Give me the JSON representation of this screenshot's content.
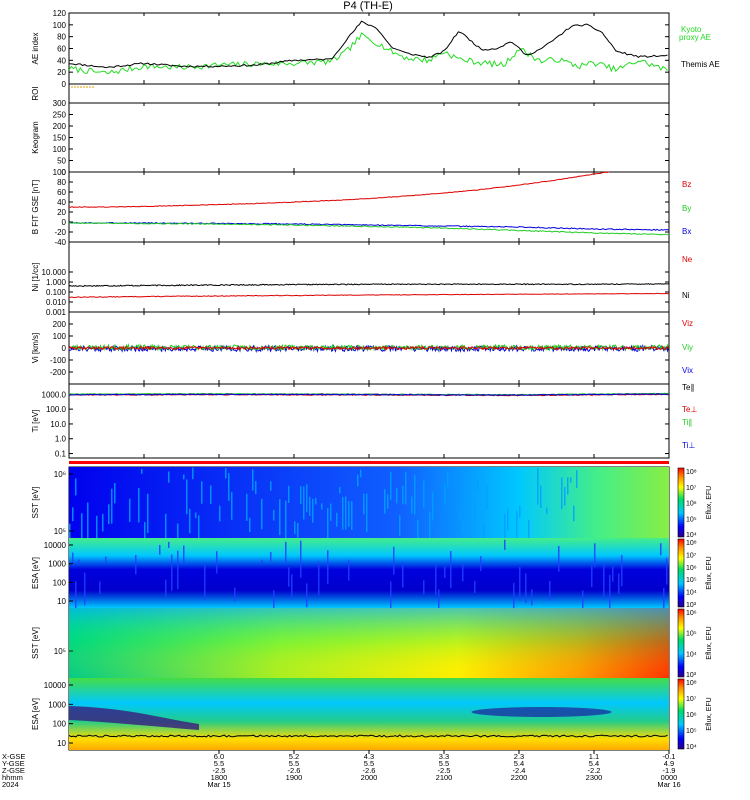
{
  "title": "P4 (TH-E)",
  "colors": {
    "kyoto": "#22dd22",
    "themis": "#000000",
    "bz": "#dd0000",
    "by": "#22cc22",
    "bx": "#0000dd",
    "ne": "#dd0000",
    "ni": "#000000",
    "te_par": "#000000",
    "te_perp": "#dd0000",
    "ti_par": "#22cc22",
    "ti_perp": "#0000dd",
    "bar_red": "#ff0000"
  },
  "chart_data": [
    {
      "type": "line",
      "panel": "ae",
      "ylabel": "AE index",
      "ylim": [
        0,
        120
      ],
      "ticks": [
        "0",
        "20",
        "40",
        "60",
        "80",
        "100",
        "120"
      ],
      "x_range_hours": [
        16,
        24
      ],
      "series": [
        {
          "name": "Kyoto proxy AE",
          "color_key": "kyoto",
          "x": [
            16.0,
            16.5,
            17.0,
            17.5,
            18.0,
            18.5,
            19.0,
            19.5,
            19.7,
            19.9,
            20.1,
            20.3,
            20.5,
            20.8,
            21.0,
            21.2,
            21.5,
            21.8,
            22.0,
            22.3,
            22.5,
            22.8,
            23.0,
            23.3,
            23.6,
            24.0
          ],
          "y": [
            26,
            18,
            30,
            28,
            32,
            34,
            35,
            38,
            55,
            82,
            70,
            55,
            44,
            40,
            55,
            42,
            36,
            32,
            60,
            38,
            42,
            30,
            36,
            24,
            40,
            22
          ]
        },
        {
          "name": "Themis AE",
          "color_key": "themis",
          "x": [
            16.0,
            16.5,
            17.0,
            17.5,
            18.0,
            18.5,
            19.0,
            19.5,
            19.7,
            19.9,
            20.1,
            20.3,
            20.5,
            20.8,
            21.0,
            21.2,
            21.5,
            21.7,
            21.9,
            22.1,
            22.3,
            22.5,
            22.7,
            22.9,
            23.1,
            23.3,
            23.6,
            24.0
          ],
          "y": [
            35,
            28,
            35,
            30,
            30,
            32,
            40,
            42,
            75,
            105,
            95,
            62,
            52,
            45,
            55,
            90,
            58,
            60,
            72,
            48,
            60,
            78,
            98,
            100,
            88,
            55,
            46,
            48
          ]
        }
      ]
    },
    {
      "type": "bar",
      "panel": "roi",
      "ylabel": "ROI",
      "note_marks": "short yellow tick near start"
    },
    {
      "type": "line",
      "panel": "keogram",
      "ylabel": "Keogram",
      "ylim": [
        0,
        300
      ],
      "ticks": [
        "0",
        "50",
        "100",
        "150",
        "200",
        "250",
        "300"
      ],
      "series": []
    },
    {
      "type": "line",
      "panel": "bfield",
      "ylabel": "B FIT GSE [nT]",
      "ylim": [
        -40,
        100
      ],
      "ticks": [
        "-40",
        "-20",
        "0",
        "20",
        "40",
        "60",
        "80",
        "100"
      ],
      "series": [
        {
          "name": "Bz",
          "color_key": "bz",
          "x": [
            16.0,
            16.5,
            17.0,
            17.5,
            18.0,
            18.5,
            19.0,
            19.5,
            20.0,
            20.5,
            21.0,
            21.5,
            22.0,
            22.5,
            23.0,
            23.2
          ],
          "y": [
            30,
            30,
            31,
            33,
            35,
            37,
            40,
            43,
            47,
            52,
            58,
            65,
            74,
            84,
            96,
            100
          ]
        },
        {
          "name": "By",
          "color_key": "by",
          "x": [
            16.0,
            17.0,
            18.0,
            19.0,
            20.0,
            21.0,
            22.0,
            23.0,
            24.0
          ],
          "y": [
            -2,
            -3,
            -4,
            -6,
            -9,
            -12,
            -17,
            -22,
            -25
          ]
        },
        {
          "name": "Bx",
          "color_key": "bx",
          "x": [
            16.0,
            17.0,
            18.0,
            19.0,
            20.0,
            21.0,
            22.0,
            23.0,
            24.0
          ],
          "y": [
            -2,
            -2,
            -3,
            -4,
            -6,
            -8,
            -10,
            -14,
            -16
          ]
        }
      ]
    },
    {
      "type": "line",
      "panel": "density",
      "ylabel": "Ni [1/cc]",
      "scale": "log",
      "ylim": [
        0.001,
        10000
      ],
      "ticks": [
        "0.001",
        "0.010",
        "0.100",
        "1.000",
        "10.000"
      ],
      "series": [
        {
          "name": "Ne",
          "color_key": "ne",
          "x": [
            16.0,
            17.0,
            18.0,
            19.0,
            20.0,
            21.0,
            22.0,
            23.0,
            24.0
          ],
          "y": [
            0.03,
            0.035,
            0.04,
            0.045,
            0.05,
            0.055,
            0.06,
            0.065,
            0.07
          ]
        },
        {
          "name": "Ni",
          "color_key": "ni",
          "x": [
            16.0,
            17.0,
            18.0,
            19.0,
            20.0,
            21.0,
            22.0,
            23.0,
            24.0
          ],
          "y": [
            0.4,
            0.45,
            0.5,
            0.55,
            0.6,
            0.6,
            0.6,
            0.6,
            0.65
          ]
        }
      ]
    },
    {
      "type": "line",
      "panel": "velocity",
      "ylabel": "Vi [km/s]",
      "ylim": [
        -300,
        300
      ],
      "ticks": [
        "-200",
        "-100",
        "0",
        "100",
        "200"
      ],
      "series": [
        {
          "name": "Viz",
          "color_key": "bz",
          "x": [
            16,
            24
          ],
          "y": [
            0,
            0
          ]
        },
        {
          "name": "Viy",
          "color_key": "by",
          "x": [
            16,
            24
          ],
          "y": [
            5,
            5
          ]
        },
        {
          "name": "Vix",
          "color_key": "bx",
          "x": [
            16,
            24
          ],
          "y": [
            -5,
            -5
          ]
        }
      ]
    },
    {
      "type": "line",
      "panel": "temperature",
      "ylabel": "Ti [eV]",
      "scale": "log",
      "ylim": [
        0.05,
        5000
      ],
      "ticks": [
        "0.1",
        "1.0",
        "10.0",
        "100.0",
        "1000.0"
      ],
      "series": [
        {
          "name": "Te∥",
          "color_key": "te_par",
          "x": [
            16,
            18,
            20,
            22,
            24
          ],
          "y": [
            1000,
            1050,
            1000,
            900,
            1100
          ]
        },
        {
          "name": "Te⊥",
          "color_key": "te_perp",
          "x": [
            16,
            18,
            20,
            22,
            24
          ],
          "y": [
            900,
            950,
            900,
            850,
            1000
          ]
        },
        {
          "name": "Ti∥",
          "color_key": "ti_par",
          "x": [
            16,
            18,
            20,
            22,
            24
          ],
          "y": [
            1050,
            1100,
            1000,
            950,
            1150
          ]
        },
        {
          "name": "Ti⊥",
          "color_key": "ti_perp",
          "x": [
            16,
            18,
            20,
            22,
            24
          ],
          "y": [
            950,
            1000,
            950,
            900,
            1050
          ]
        }
      ]
    },
    {
      "type": "heatmap",
      "panel": "sst_e",
      "ylabel": "SST [eV]",
      "ticks": [
        "10⁵",
        "10⁶"
      ],
      "colorbar_label": "Eflux, EFU",
      "colorbar_ticks": [
        "10⁴",
        "10⁵",
        "10⁶",
        "10⁷",
        "10⁸"
      ]
    },
    {
      "type": "heatmap",
      "panel": "esa_e",
      "ylabel": "ESA [eV]",
      "ticks": [
        "10",
        "100",
        "1000",
        "10000"
      ],
      "colorbar_label": "Eflux, EFU",
      "colorbar_ticks": [
        "10³",
        "10⁴",
        "10⁵",
        "10⁶",
        "10⁷",
        "10⁸"
      ]
    },
    {
      "type": "heatmap",
      "panel": "sst_i",
      "ylabel": "SST [eV]",
      "ticks": [
        "10⁵"
      ],
      "colorbar_label": "Eflux, EFU",
      "colorbar_ticks": [
        "10³",
        "10⁴",
        "10⁵",
        "10⁶"
      ]
    },
    {
      "type": "heatmap",
      "panel": "esa_i",
      "ylabel": "ESA [eV]",
      "ticks": [
        "10",
        "100",
        "1000",
        "10000"
      ],
      "colorbar_label": "Eflux, EFU",
      "colorbar_ticks": [
        "10⁴",
        "10⁵",
        "10⁶",
        "10⁷",
        "10⁸"
      ]
    }
  ],
  "legend": {
    "ae": [
      "Kyoto",
      "proxy AE",
      "Themis AE"
    ],
    "bfield": [
      "Bz",
      "By",
      "Bx"
    ],
    "density": [
      "Ne",
      "Ni"
    ],
    "velocity": [
      "Viz",
      "Viy",
      "Vix"
    ],
    "temperature": [
      "Te∥",
      "Te⊥",
      "Ti∥",
      "Ti⊥"
    ]
  },
  "x_axis": {
    "row_labels": [
      "X-GSE",
      "Y-GSE",
      "Z-GSE",
      "hhmm",
      "2024"
    ],
    "columns": [
      {
        "values": [
          "6.0",
          "5.5",
          "-2.5",
          "1800",
          "Mar 15"
        ]
      },
      {
        "values": [
          "5.2",
          "5.5",
          "-2.6",
          "1900",
          ""
        ]
      },
      {
        "values": [
          "4.3",
          "5.5",
          "-2.6",
          "2000",
          ""
        ]
      },
      {
        "values": [
          "3.3",
          "5.5",
          "-2.5",
          "2100",
          ""
        ]
      },
      {
        "values": [
          "2.3",
          "5.4",
          "-2.4",
          "2200",
          ""
        ]
      },
      {
        "values": [
          "1.1",
          "5.4",
          "-2.2",
          "2300",
          ""
        ]
      },
      {
        "values": [
          "-0.1",
          "4.9",
          "-1.9",
          "0000",
          "Mar 16"
        ]
      }
    ]
  }
}
